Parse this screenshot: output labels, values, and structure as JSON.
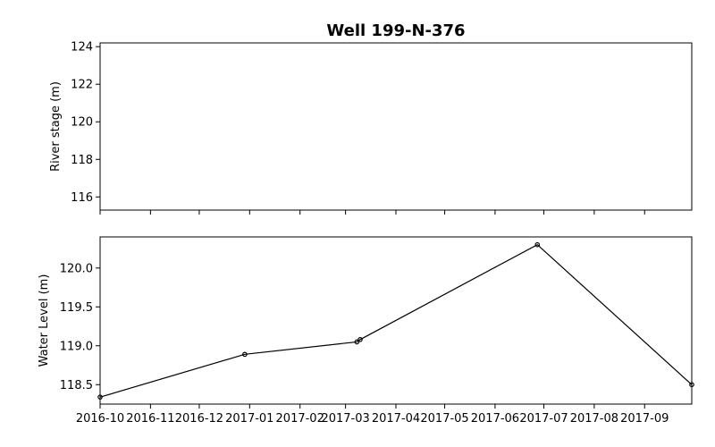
{
  "chart_data": {
    "title": "Well 199-N-376",
    "shared_x": {
      "type": "date",
      "range": [
        "2016-10-01",
        "2017-09-30"
      ],
      "tick_labels": [
        "2016-10",
        "2016-11",
        "2016-12",
        "2017-01",
        "2017-02",
        "2017-03",
        "2017-04",
        "2017-05",
        "2017-06",
        "2017-07",
        "2017-08",
        "2017-09"
      ],
      "tick_dates": [
        "2016-10-01",
        "2016-11-01",
        "2016-12-01",
        "2017-01-01",
        "2017-02-01",
        "2017-03-01",
        "2017-04-01",
        "2017-05-01",
        "2017-06-01",
        "2017-07-01",
        "2017-08-01",
        "2017-09-01"
      ],
      "tick_labels_shown_on": "bottom"
    },
    "panels": [
      {
        "type": "line",
        "ylabel": "River stage (m)",
        "ylim": [
          115.3,
          124.2
        ],
        "yticks": [
          116,
          118,
          120,
          122,
          124
        ],
        "series": []
      },
      {
        "type": "line",
        "ylabel": "Water Level (m)",
        "ylim": [
          118.25,
          120.4
        ],
        "yticks": [
          118.5,
          119.0,
          119.5,
          120.0
        ],
        "ytick_labels": [
          "118.5",
          "119.0",
          "119.5",
          "120.0"
        ],
        "series": [
          {
            "color": "#000000",
            "marker": "open-circle",
            "points": [
              {
                "x": "2016-10-01",
                "y": 118.34
              },
              {
                "x": "2016-12-29",
                "y": 118.89
              },
              {
                "x": "2017-03-08",
                "y": 119.05
              },
              {
                "x": "2017-03-10",
                "y": 119.08
              },
              {
                "x": "2017-06-27",
                "y": 120.3
              },
              {
                "x": "2017-09-30",
                "y": 118.5
              }
            ]
          }
        ]
      }
    ]
  }
}
